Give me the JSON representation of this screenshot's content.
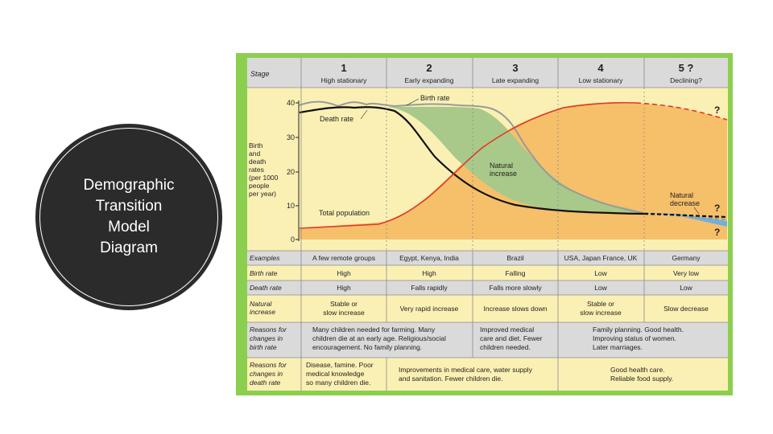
{
  "slide_title_lines": [
    "Demographic",
    "Transition",
    "Model",
    "Diagram"
  ],
  "diagram": {
    "stage_header": "Stage",
    "stages": [
      {
        "num": "1",
        "name": "High stationary"
      },
      {
        "num": "2",
        "name": "Early expanding"
      },
      {
        "num": "3",
        "name": "Late expanding"
      },
      {
        "num": "4",
        "name": "Low stationary"
      },
      {
        "num": "5 ?",
        "name": "Declining?"
      }
    ],
    "y_axis_label": [
      "Birth",
      "and",
      "death",
      "rates",
      "(per 1000",
      "people",
      "per year)"
    ],
    "y_ticks": [
      "40",
      "30",
      "20",
      "10",
      "0"
    ],
    "curve_labels": {
      "birth_rate": "Birth rate",
      "death_rate": "Death rate",
      "total_population": "Total population",
      "natural_increase": [
        "Natural",
        "increase"
      ],
      "natural_decrease": [
        "Natural",
        "decrease"
      ],
      "question_marks": [
        "?",
        "?",
        "?"
      ]
    },
    "rows": [
      {
        "label": [
          "Examples"
        ],
        "cells": [
          "A few remote groups",
          "Egypt, Kenya, India",
          "Brazil",
          "USA, Japan France, UK",
          "Germany"
        ]
      },
      {
        "label": [
          "Birth rate"
        ],
        "cells": [
          "High",
          "High",
          "Falling",
          "Low",
          "Very low"
        ]
      },
      {
        "label": [
          "Death rate"
        ],
        "cells": [
          "High",
          "Falls rapidly",
          "Falls more slowly",
          "Low",
          "Low"
        ]
      },
      {
        "label": [
          "Natural",
          "increase"
        ],
        "cells": [
          [
            "Stable or",
            "slow increase"
          ],
          [
            "Very rapid increase"
          ],
          [
            "Increase slows down"
          ],
          [
            "Stable or",
            "slow increase"
          ],
          [
            "Slow decrease"
          ]
        ]
      }
    ],
    "reasons_birth": {
      "label": [
        "Reasons for",
        "changes in",
        "birth rate"
      ],
      "text_stage12": [
        "Many children needed for farming. Many",
        "children die at an early age. Religious/social",
        "encouragement. No family planning."
      ],
      "text_stage3": [
        "Improved medical",
        "care and diet. Fewer",
        "children needed."
      ],
      "text_stage45": [
        "Family planning. Good health.",
        "Improving status of women.",
        "Later marriages."
      ]
    },
    "reasons_death": {
      "label": [
        "Reasons for",
        "changes in",
        "death rate"
      ],
      "text_stage1": [
        "Disease, famine. Poor",
        "medical knowledge",
        "so many children die."
      ],
      "text_stage23": [
        "Improvements in medical care, water supply",
        "and sanitation. Fewer children die."
      ],
      "text_stage45": [
        "Good health care.",
        "Reliable food supply."
      ]
    },
    "colors": {
      "frame": "#8ccf4e",
      "cream": "#fbf0b4",
      "header": "#dadada",
      "orange": "#f6bf6a",
      "green": "#a8c98a",
      "red": "#e03828",
      "blue": "#6fb0dc"
    }
  }
}
